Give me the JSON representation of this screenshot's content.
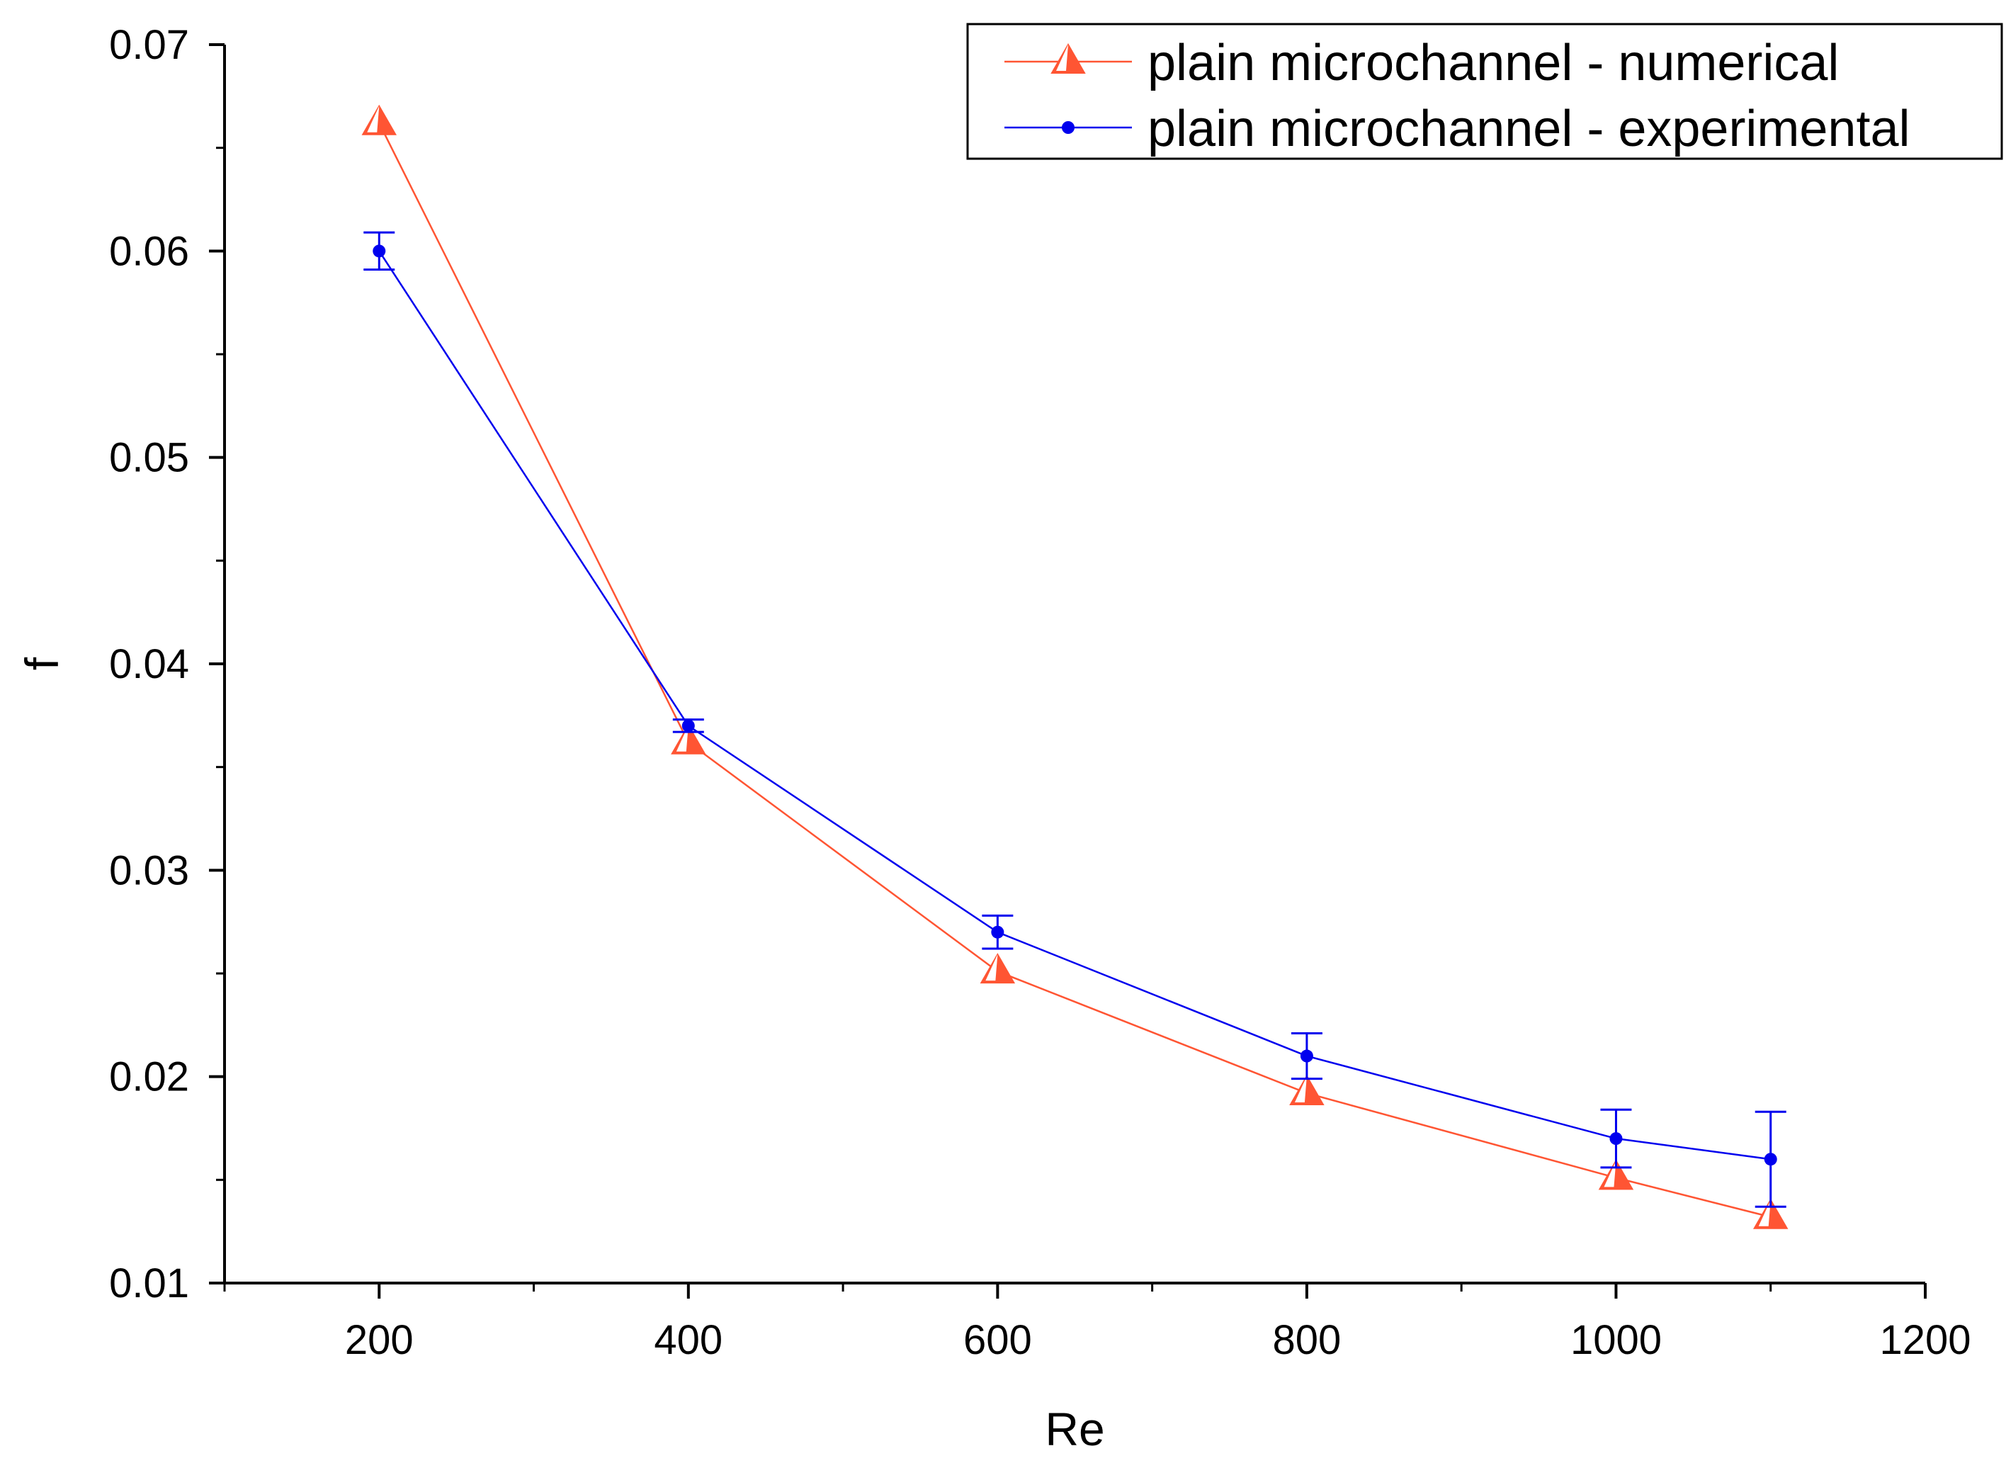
{
  "chart_data": {
    "type": "line",
    "title": "",
    "xlabel": "Re",
    "ylabel": "f",
    "xlim": [
      100,
      1200
    ],
    "ylim": [
      0.01,
      0.07
    ],
    "x_ticks": [
      200,
      400,
      600,
      800,
      1000,
      1200
    ],
    "x_tick_labels": [
      "200",
      "400",
      "600",
      "800",
      "1000",
      "1200"
    ],
    "y_ticks": [
      0.01,
      0.02,
      0.03,
      0.04,
      0.05,
      0.06,
      0.07
    ],
    "y_tick_labels": [
      "0.01",
      "0.02",
      "0.03",
      "0.04",
      "0.05",
      "0.06",
      "0.07"
    ],
    "grid": false,
    "legend_position": "top-right",
    "series": [
      {
        "name": "plain microchannel - numerical",
        "color": "#ff5533",
        "marker": "triangle",
        "x": [
          200,
          400,
          600,
          800,
          1000,
          1100
        ],
        "y": [
          0.0662,
          0.0362,
          0.0251,
          0.0192,
          0.0151,
          0.0132
        ]
      },
      {
        "name": "plain microchannel - experimental",
        "color": "#0000ee",
        "marker": "circle",
        "x": [
          200,
          400,
          600,
          800,
          1000,
          1100
        ],
        "y": [
          0.06,
          0.037,
          0.027,
          0.021,
          0.017,
          0.016
        ],
        "y_err": [
          0.0009,
          0.0003,
          0.0008,
          0.0011,
          0.0014,
          0.0023
        ]
      }
    ]
  }
}
